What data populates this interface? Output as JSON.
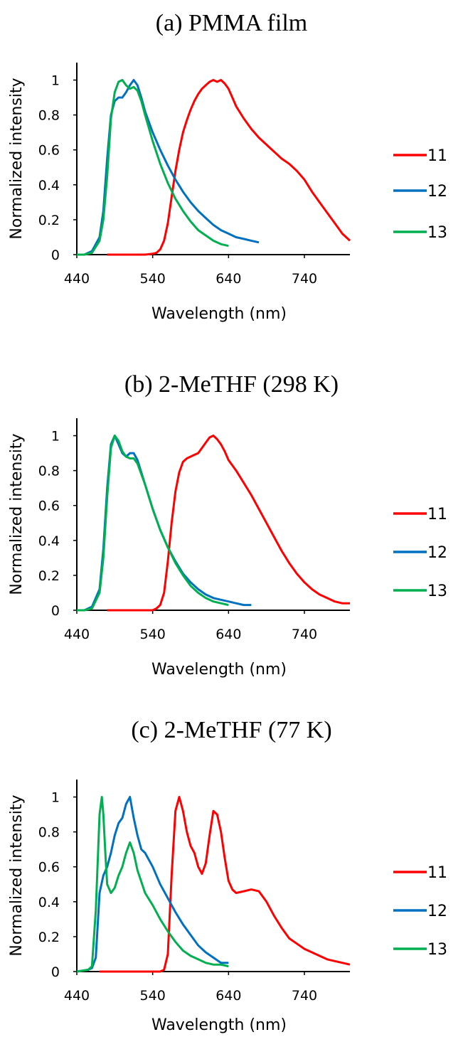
{
  "chart_data": [
    {
      "type": "line",
      "title": "(a) PMMA film",
      "xlabel": "Wavelength (nm)",
      "ylabel": "Normalized intensity",
      "xticks": [
        "440",
        "540",
        "640",
        "740"
      ],
      "yticks": [
        "0",
        "0.2",
        "0.4",
        "0.6",
        "0.8",
        "1"
      ],
      "xlim": [
        440,
        800
      ],
      "ylim": [
        0,
        1.1
      ],
      "grid": false,
      "legend_position": "right",
      "series": [
        {
          "name": "11",
          "color": "#ff0000",
          "x": [
            480,
            500,
            520,
            530,
            540,
            545,
            550,
            555,
            560,
            565,
            570,
            575,
            580,
            585,
            590,
            595,
            600,
            605,
            610,
            615,
            620,
            625,
            630,
            635,
            640,
            645,
            650,
            660,
            670,
            680,
            690,
            700,
            710,
            720,
            730,
            740,
            750,
            760,
            770,
            780,
            790,
            800
          ],
          "y": [
            0,
            0,
            0,
            0,
            0.005,
            0.01,
            0.03,
            0.08,
            0.18,
            0.33,
            0.48,
            0.6,
            0.7,
            0.77,
            0.83,
            0.88,
            0.92,
            0.95,
            0.97,
            0.99,
            1,
            0.99,
            1,
            0.98,
            0.95,
            0.9,
            0.85,
            0.78,
            0.72,
            0.67,
            0.63,
            0.59,
            0.55,
            0.52,
            0.48,
            0.43,
            0.36,
            0.3,
            0.24,
            0.18,
            0.12,
            0.08
          ]
        },
        {
          "name": "12",
          "color": "#0070c0",
          "x": [
            440,
            450,
            460,
            470,
            475,
            480,
            485,
            490,
            495,
            500,
            505,
            510,
            515,
            520,
            525,
            530,
            540,
            550,
            560,
            570,
            580,
            590,
            600,
            610,
            620,
            630,
            640,
            650,
            660,
            670,
            680
          ],
          "y": [
            0,
            0,
            0.02,
            0.1,
            0.25,
            0.55,
            0.8,
            0.88,
            0.9,
            0.9,
            0.93,
            0.97,
            1,
            0.97,
            0.9,
            0.82,
            0.7,
            0.6,
            0.51,
            0.43,
            0.36,
            0.3,
            0.25,
            0.21,
            0.17,
            0.14,
            0.12,
            0.1,
            0.09,
            0.08,
            0.07
          ]
        },
        {
          "name": "13",
          "color": "#00b050",
          "x": [
            440,
            450,
            460,
            470,
            475,
            480,
            485,
            490,
            495,
            500,
            505,
            510,
            515,
            520,
            525,
            530,
            540,
            550,
            560,
            570,
            580,
            590,
            600,
            610,
            620,
            630,
            640
          ],
          "y": [
            0,
            0,
            0.01,
            0.08,
            0.2,
            0.45,
            0.78,
            0.93,
            0.99,
            1,
            0.97,
            0.95,
            0.96,
            0.94,
            0.88,
            0.8,
            0.65,
            0.52,
            0.41,
            0.32,
            0.25,
            0.19,
            0.14,
            0.11,
            0.08,
            0.06,
            0.05
          ]
        }
      ]
    },
    {
      "type": "line",
      "title": "(b) 2-MeTHF (298 K)",
      "xlabel": "Wavelength (nm)",
      "ylabel": "Normalized intensity",
      "xticks": [
        "440",
        "540",
        "640",
        "740"
      ],
      "yticks": [
        "0",
        "0.2",
        "0.4",
        "0.6",
        "0.8",
        "1"
      ],
      "xlim": [
        440,
        800
      ],
      "ylim": [
        0,
        1.1
      ],
      "grid": false,
      "legend_position": "right",
      "series": [
        {
          "name": "11",
          "color": "#ff0000",
          "x": [
            480,
            500,
            520,
            530,
            540,
            545,
            550,
            555,
            560,
            565,
            570,
            575,
            580,
            585,
            590,
            595,
            600,
            605,
            610,
            615,
            620,
            625,
            630,
            635,
            640,
            650,
            660,
            670,
            680,
            690,
            700,
            710,
            720,
            730,
            740,
            750,
            760,
            770,
            780,
            790,
            800
          ],
          "y": [
            0,
            0,
            0,
            0,
            0,
            0.01,
            0.03,
            0.1,
            0.28,
            0.5,
            0.68,
            0.79,
            0.85,
            0.87,
            0.88,
            0.89,
            0.9,
            0.93,
            0.96,
            0.99,
            1,
            0.98,
            0.95,
            0.91,
            0.86,
            0.8,
            0.73,
            0.66,
            0.58,
            0.5,
            0.42,
            0.34,
            0.27,
            0.21,
            0.16,
            0.12,
            0.09,
            0.07,
            0.05,
            0.04,
            0.04
          ]
        },
        {
          "name": "12",
          "color": "#0070c0",
          "x": [
            440,
            450,
            460,
            470,
            475,
            480,
            485,
            490,
            495,
            500,
            505,
            510,
            515,
            520,
            530,
            540,
            550,
            560,
            570,
            580,
            590,
            600,
            610,
            620,
            630,
            640,
            650,
            660,
            670
          ],
          "y": [
            0,
            0,
            0.02,
            0.12,
            0.35,
            0.7,
            0.95,
            1,
            0.95,
            0.9,
            0.88,
            0.9,
            0.9,
            0.86,
            0.72,
            0.58,
            0.46,
            0.36,
            0.28,
            0.21,
            0.16,
            0.12,
            0.09,
            0.07,
            0.06,
            0.05,
            0.04,
            0.03,
            0.03
          ]
        },
        {
          "name": "13",
          "color": "#00b050",
          "x": [
            440,
            450,
            460,
            470,
            475,
            480,
            485,
            490,
            495,
            500,
            505,
            510,
            515,
            520,
            530,
            540,
            550,
            560,
            570,
            580,
            590,
            600,
            610,
            620,
            630,
            640
          ],
          "y": [
            0,
            0,
            0.01,
            0.1,
            0.3,
            0.65,
            0.93,
            1,
            0.97,
            0.91,
            0.88,
            0.87,
            0.87,
            0.84,
            0.72,
            0.58,
            0.46,
            0.36,
            0.27,
            0.2,
            0.14,
            0.1,
            0.07,
            0.05,
            0.04,
            0.03
          ]
        }
      ]
    },
    {
      "type": "line",
      "title": "(c) 2-MeTHF (77 K)",
      "xlabel": "Wavelength (nm)",
      "ylabel": "Normalized intensity",
      "xticks": [
        "440",
        "540",
        "640",
        "740"
      ],
      "yticks": [
        "0",
        "0.2",
        "0.4",
        "0.6",
        "0.8",
        "1"
      ],
      "xlim": [
        440,
        800
      ],
      "ylim": [
        0,
        1.1
      ],
      "grid": false,
      "legend_position": "right",
      "series": [
        {
          "name": "11",
          "color": "#ff0000",
          "x": [
            470,
            500,
            530,
            550,
            555,
            560,
            565,
            570,
            575,
            580,
            585,
            590,
            595,
            600,
            605,
            610,
            615,
            620,
            625,
            630,
            635,
            640,
            645,
            650,
            660,
            670,
            680,
            690,
            700,
            710,
            720,
            730,
            740,
            750,
            760,
            770,
            780,
            790,
            800
          ],
          "y": [
            0,
            0,
            0,
            0,
            0.01,
            0.1,
            0.55,
            0.92,
            1,
            0.92,
            0.8,
            0.72,
            0.68,
            0.6,
            0.56,
            0.62,
            0.78,
            0.92,
            0.9,
            0.8,
            0.65,
            0.52,
            0.47,
            0.45,
            0.46,
            0.47,
            0.46,
            0.4,
            0.32,
            0.25,
            0.19,
            0.16,
            0.13,
            0.11,
            0.09,
            0.07,
            0.06,
            0.05,
            0.04
          ]
        },
        {
          "name": "12",
          "color": "#0070c0",
          "x": [
            440,
            455,
            460,
            465,
            470,
            475,
            480,
            485,
            490,
            495,
            500,
            505,
            510,
            515,
            520,
            525,
            530,
            540,
            550,
            560,
            570,
            580,
            590,
            600,
            610,
            620,
            630,
            640
          ],
          "y": [
            0,
            0.01,
            0.02,
            0.08,
            0.45,
            0.55,
            0.6,
            0.68,
            0.78,
            0.85,
            0.88,
            0.96,
            1,
            0.88,
            0.78,
            0.7,
            0.68,
            0.6,
            0.5,
            0.42,
            0.34,
            0.27,
            0.21,
            0.15,
            0.11,
            0.08,
            0.05,
            0.05
          ]
        },
        {
          "name": "13",
          "color": "#00b050",
          "x": [
            440,
            455,
            460,
            465,
            470,
            473,
            475,
            478,
            480,
            485,
            490,
            495,
            500,
            505,
            510,
            515,
            520,
            530,
            540,
            550,
            560,
            570,
            580,
            590,
            600,
            610,
            620,
            630,
            640
          ],
          "y": [
            0,
            0.01,
            0.03,
            0.35,
            0.9,
            1,
            0.9,
            0.65,
            0.5,
            0.45,
            0.48,
            0.55,
            0.6,
            0.68,
            0.74,
            0.68,
            0.58,
            0.45,
            0.38,
            0.3,
            0.23,
            0.17,
            0.12,
            0.09,
            0.07,
            0.05,
            0.04,
            0.04,
            0.03
          ]
        }
      ]
    }
  ]
}
